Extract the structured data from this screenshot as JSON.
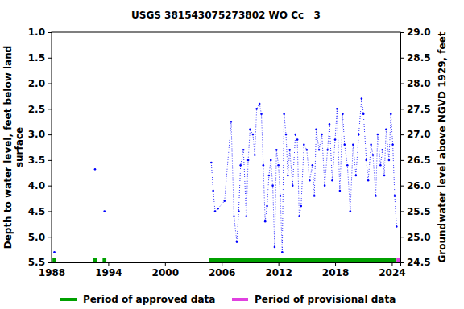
{
  "chart_data": {
    "type": "line",
    "title": "USGS 381543075273802 WO Cc   3",
    "ylabel": [
      "Depth to water level, feet below land",
      "surface"
    ],
    "y2label": "Groundwater level above NGVD 1929, feet",
    "color": "#0000ff",
    "marker": "dot",
    "line_style": "dotted",
    "x": [
      1988.3,
      1990.0,
      1992.6,
      1993.1,
      1993.6,
      1999.0,
      2004.9,
      2005.1,
      2005.3,
      2005.6,
      2006.3,
      2007.0,
      2007.3,
      2007.6,
      2007.8,
      2008.0,
      2008.3,
      2008.6,
      2008.8,
      2009.0,
      2009.3,
      2009.5,
      2009.7,
      2010.0,
      2010.2,
      2010.4,
      2010.6,
      2010.8,
      2011.0,
      2011.2,
      2011.4,
      2011.6,
      2011.8,
      2012.0,
      2012.2,
      2012.4,
      2012.6,
      2012.8,
      2013.0,
      2013.2,
      2013.5,
      2013.8,
      2014.0,
      2014.2,
      2014.4,
      2014.7,
      2015.0,
      2015.3,
      2015.6,
      2015.8,
      2016.0,
      2016.3,
      2016.6,
      2016.9,
      2017.2,
      2017.4,
      2017.7,
      2018.0,
      2018.2,
      2018.5,
      2018.8,
      2019.0,
      2019.3,
      2019.6,
      2019.9,
      2020.2,
      2020.5,
      2020.8,
      2021.0,
      2021.3,
      2021.5,
      2021.8,
      2022.0,
      2022.3,
      2022.5,
      2022.8,
      2023.0,
      2023.2,
      2023.4,
      2023.7,
      2023.9,
      2024.1,
      2024.3,
      2024.5
    ],
    "values": [
      5.3,
      null,
      3.68,
      null,
      4.5,
      null,
      3.55,
      4.1,
      4.5,
      4.45,
      4.3,
      2.75,
      4.6,
      5.1,
      4.5,
      3.6,
      3.3,
      4.6,
      3.5,
      2.9,
      3.0,
      3.4,
      2.5,
      2.4,
      2.6,
      3.6,
      4.7,
      4.4,
      3.8,
      3.5,
      4.0,
      5.2,
      3.3,
      3.6,
      4.2,
      5.3,
      2.6,
      3.0,
      3.8,
      3.3,
      4.0,
      3.0,
      3.1,
      4.6,
      4.4,
      3.2,
      3.3,
      3.9,
      3.6,
      4.2,
      2.9,
      3.3,
      3.0,
      4.0,
      3.3,
      2.8,
      3.9,
      3.1,
      2.5,
      4.1,
      2.6,
      3.2,
      3.6,
      4.5,
      3.2,
      3.8,
      3.0,
      2.3,
      2.6,
      3.5,
      3.9,
      3.2,
      3.4,
      4.2,
      3.0,
      3.6,
      3.3,
      3.8,
      2.9,
      3.5,
      2.6,
      3.2,
      4.2,
      4.8
    ],
    "periods": [
      {
        "name": "Period of approved data",
        "color": "#00a000",
        "ranges": [
          [
            1988.1,
            1988.5
          ],
          [
            1992.4,
            1992.8
          ],
          [
            1993.4,
            1993.8
          ],
          [
            2004.7,
            2024.5
          ]
        ]
      },
      {
        "name": "Period of provisional data",
        "color": "#e040e0",
        "ranges": [
          [
            2024.5,
            2024.9
          ]
        ]
      }
    ],
    "xlim": [
      1988,
      2024.9
    ],
    "xticks": [
      1988,
      1994,
      2000,
      2006,
      2012,
      2018,
      2024
    ],
    "ylim": [
      5.5,
      1.0
    ],
    "yticks": [
      {
        "value": 1.0,
        "label": "1.0"
      },
      {
        "value": 1.5,
        "label": "1.5"
      },
      {
        "value": 2.0,
        "label": "2.0"
      },
      {
        "value": 2.5,
        "label": "2.5"
      },
      {
        "value": 3.0,
        "label": "3.0"
      },
      {
        "value": 3.5,
        "label": "3.5"
      },
      {
        "value": 4.0,
        "label": "4.0"
      },
      {
        "value": 4.5,
        "label": "4.5"
      },
      {
        "value": 5.0,
        "label": "5.0"
      },
      {
        "value": 5.5,
        "label": "5.5"
      }
    ],
    "y2lim": [
      24.5,
      29.0
    ],
    "y2ticks": [
      {
        "value": 24.5,
        "label": "24.5"
      },
      {
        "value": 25.0,
        "label": "25.0"
      },
      {
        "value": 25.5,
        "label": "25.5"
      },
      {
        "value": 26.0,
        "label": "26.0"
      },
      {
        "value": 26.5,
        "label": "26.5"
      },
      {
        "value": 27.0,
        "label": "27.0"
      },
      {
        "value": 27.5,
        "label": "27.5"
      },
      {
        "value": 28.0,
        "label": "28.0"
      },
      {
        "value": 28.5,
        "label": "28.5"
      },
      {
        "value": 29.0,
        "label": "29.0"
      }
    ],
    "grid": false,
    "legend": "bottom"
  }
}
